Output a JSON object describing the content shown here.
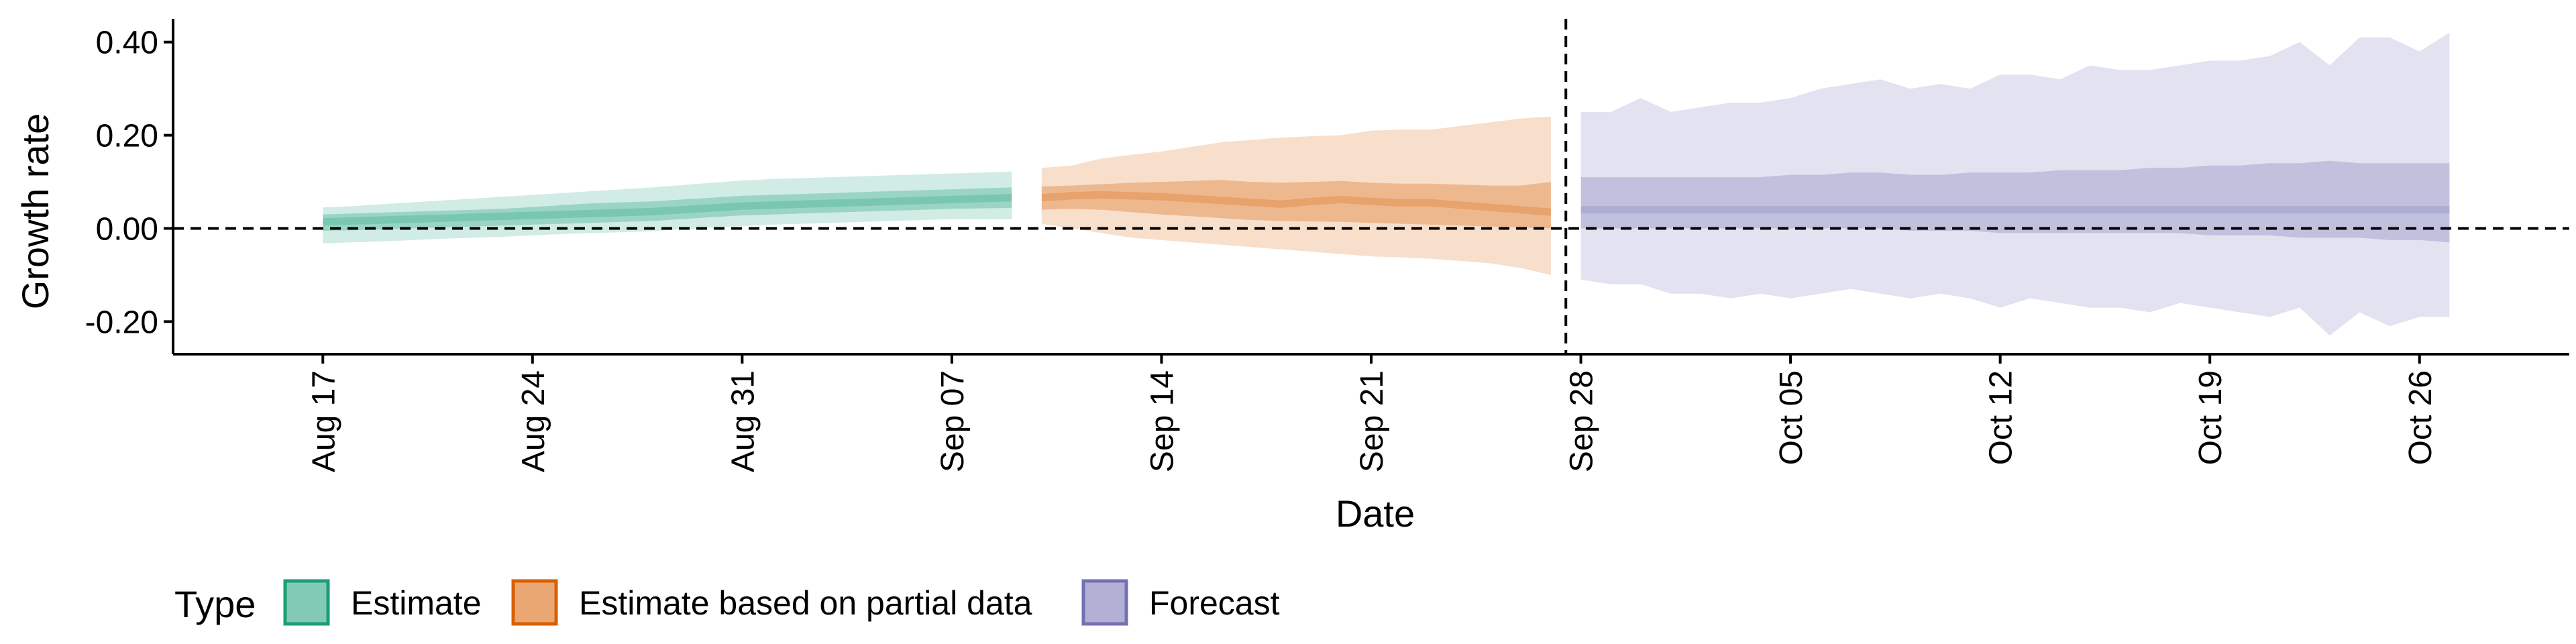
{
  "chart_data": {
    "type": "area",
    "xlabel": "Date",
    "ylabel": "Growth rate",
    "ylim": [
      -0.27,
      0.45
    ],
    "y_ticks": [
      0.4,
      0.2,
      0.0,
      -0.2
    ],
    "y_tick_labels": [
      "0.40",
      "0.20",
      "0.00",
      "-0.20"
    ],
    "x_start_date": "2020-08-17",
    "x_end_date": "2020-10-26",
    "xlim": [
      "2020-08-12",
      "2020-10-31"
    ],
    "x_ticks": [
      "2020-08-17",
      "2020-08-24",
      "2020-08-31",
      "2020-09-07",
      "2020-09-14",
      "2020-09-21",
      "2020-09-28",
      "2020-10-05",
      "2020-10-12",
      "2020-10-19",
      "2020-10-26"
    ],
    "x_tick_labels": [
      "Aug 17",
      "Aug 24",
      "Aug 31",
      "Sep 07",
      "Sep 14",
      "Sep 21",
      "Sep 28",
      "Oct 05",
      "Oct 12",
      "Oct 19",
      "Oct 26"
    ],
    "reference_lines": {
      "horizontal_y": 0.0,
      "vertical_date": "2020-09-27"
    },
    "legend": {
      "title": "Type",
      "position": "bottom",
      "entries": [
        "Estimate",
        "Estimate based on partial data",
        "Forecast"
      ]
    },
    "colors": {
      "Estimate": "#1b9e77",
      "Estimate based on partial data": "#d95f02",
      "Forecast": "#7570b3"
    },
    "series": [
      {
        "name": "Estimate",
        "start_date": "2020-08-17",
        "dates": [
          "2020-08-17",
          "2020-08-18",
          "2020-08-19",
          "2020-08-20",
          "2020-08-21",
          "2020-08-22",
          "2020-08-23",
          "2020-08-24",
          "2020-08-25",
          "2020-08-26",
          "2020-08-27",
          "2020-08-28",
          "2020-08-29",
          "2020-08-30",
          "2020-08-31",
          "2020-09-01",
          "2020-09-02",
          "2020-09-03",
          "2020-09-04",
          "2020-09-05",
          "2020-09-06",
          "2020-09-07",
          "2020-09-08",
          "2020-09-09"
        ],
        "median": [
          0.014,
          0.016,
          0.018,
          0.02,
          0.022,
          0.024,
          0.026,
          0.028,
          0.03,
          0.032,
          0.034,
          0.036,
          0.04,
          0.044,
          0.048,
          0.05,
          0.052,
          0.054,
          0.056,
          0.058,
          0.06,
          0.062,
          0.064,
          0.066
        ],
        "lower_90": [
          -0.032,
          -0.03,
          -0.028,
          -0.025,
          -0.022,
          -0.02,
          -0.018,
          -0.015,
          -0.012,
          -0.01,
          -0.008,
          -0.006,
          -0.002,
          0.002,
          0.005,
          0.008,
          0.01,
          0.012,
          0.014,
          0.016,
          0.018,
          0.02,
          0.02,
          0.02
        ],
        "upper_90": [
          0.045,
          0.048,
          0.052,
          0.056,
          0.06,
          0.064,
          0.068,
          0.072,
          0.076,
          0.08,
          0.084,
          0.088,
          0.093,
          0.098,
          0.103,
          0.106,
          0.108,
          0.11,
          0.112,
          0.114,
          0.116,
          0.118,
          0.12,
          0.122
        ],
        "lower_50": [
          -0.005,
          -0.004,
          -0.002,
          0.0,
          0.002,
          0.004,
          0.006,
          0.008,
          0.01,
          0.012,
          0.014,
          0.016,
          0.02,
          0.024,
          0.028,
          0.03,
          0.032,
          0.034,
          0.036,
          0.038,
          0.04,
          0.042,
          0.043,
          0.044
        ],
        "upper_50": [
          0.03,
          0.032,
          0.034,
          0.036,
          0.038,
          0.04,
          0.042,
          0.046,
          0.05,
          0.054,
          0.056,
          0.058,
          0.062,
          0.066,
          0.07,
          0.072,
          0.074,
          0.076,
          0.078,
          0.08,
          0.082,
          0.084,
          0.086,
          0.088
        ]
      },
      {
        "name": "Estimate based on partial data",
        "start_date": "2020-09-10",
        "dates": [
          "2020-09-10",
          "2020-09-11",
          "2020-09-12",
          "2020-09-13",
          "2020-09-14",
          "2020-09-15",
          "2020-09-16",
          "2020-09-17",
          "2020-09-18",
          "2020-09-19",
          "2020-09-20",
          "2020-09-21",
          "2020-09-22",
          "2020-09-23",
          "2020-09-24",
          "2020-09-25",
          "2020-09-26",
          "2020-09-27"
        ],
        "median": [
          0.066,
          0.07,
          0.072,
          0.07,
          0.068,
          0.064,
          0.06,
          0.056,
          0.052,
          0.058,
          0.062,
          0.058,
          0.055,
          0.055,
          0.05,
          0.045,
          0.04,
          0.035
        ],
        "lower_90": [
          0.01,
          0.0,
          -0.01,
          -0.02,
          -0.025,
          -0.03,
          -0.035,
          -0.04,
          -0.045,
          -0.05,
          -0.055,
          -0.06,
          -0.062,
          -0.065,
          -0.07,
          -0.075,
          -0.085,
          -0.1
        ],
        "upper_90": [
          0.13,
          0.135,
          0.15,
          0.158,
          0.165,
          0.175,
          0.185,
          0.19,
          0.195,
          0.198,
          0.2,
          0.21,
          0.212,
          0.212,
          0.22,
          0.228,
          0.236,
          0.24
        ],
        "lower_50": [
          0.04,
          0.042,
          0.04,
          0.035,
          0.03,
          0.026,
          0.022,
          0.018,
          0.016,
          0.015,
          0.014,
          0.012,
          0.01,
          0.008,
          0.006,
          0.004,
          0.002,
          0.0
        ],
        "upper_50": [
          0.09,
          0.092,
          0.095,
          0.098,
          0.1,
          0.102,
          0.104,
          0.1,
          0.098,
          0.1,
          0.102,
          0.098,
          0.096,
          0.096,
          0.094,
          0.092,
          0.092,
          0.1
        ]
      },
      {
        "name": "Forecast",
        "start_date": "2020-09-28",
        "dates": [
          "2020-09-28",
          "2020-09-29",
          "2020-09-30",
          "2020-10-01",
          "2020-10-02",
          "2020-10-03",
          "2020-10-04",
          "2020-10-05",
          "2020-10-06",
          "2020-10-07",
          "2020-10-08",
          "2020-10-09",
          "2020-10-10",
          "2020-10-11",
          "2020-10-12",
          "2020-10-13",
          "2020-10-14",
          "2020-10-15",
          "2020-10-16",
          "2020-10-17",
          "2020-10-18",
          "2020-10-19",
          "2020-10-20",
          "2020-10-21",
          "2020-10-22",
          "2020-10-23",
          "2020-10-24",
          "2020-10-25",
          "2020-10-26",
          "2020-10-27"
        ],
        "median": [
          0.04,
          0.04,
          0.04,
          0.04,
          0.04,
          0.04,
          0.04,
          0.04,
          0.04,
          0.04,
          0.04,
          0.04,
          0.04,
          0.04,
          0.04,
          0.04,
          0.04,
          0.04,
          0.04,
          0.04,
          0.04,
          0.04,
          0.04,
          0.04,
          0.04,
          0.04,
          0.04,
          0.04,
          0.04,
          0.04
        ],
        "lower_90": [
          -0.11,
          -0.12,
          -0.12,
          -0.14,
          -0.14,
          -0.15,
          -0.14,
          -0.15,
          -0.14,
          -0.13,
          -0.14,
          -0.15,
          -0.14,
          -0.15,
          -0.17,
          -0.15,
          -0.16,
          -0.17,
          -0.17,
          -0.18,
          -0.16,
          -0.17,
          -0.18,
          -0.19,
          -0.17,
          -0.23,
          -0.18,
          -0.21,
          -0.19,
          -0.19
        ],
        "upper_90": [
          0.25,
          0.25,
          0.28,
          0.25,
          0.26,
          0.27,
          0.27,
          0.28,
          0.3,
          0.31,
          0.32,
          0.3,
          0.31,
          0.3,
          0.33,
          0.33,
          0.32,
          0.35,
          0.34,
          0.34,
          0.35,
          0.36,
          0.36,
          0.37,
          0.4,
          0.35,
          0.41,
          0.41,
          0.38,
          0.42
        ],
        "lower_50": [
          0.0,
          0.0,
          0.0,
          0.0,
          0.0,
          0.0,
          0.0,
          0.0,
          0.0,
          0.0,
          0.0,
          -0.005,
          -0.005,
          -0.005,
          -0.01,
          -0.01,
          -0.01,
          -0.01,
          -0.01,
          -0.01,
          -0.01,
          -0.015,
          -0.015,
          -0.015,
          -0.02,
          -0.02,
          -0.02,
          -0.025,
          -0.025,
          -0.03
        ],
        "upper_50": [
          0.11,
          0.11,
          0.11,
          0.11,
          0.11,
          0.11,
          0.11,
          0.115,
          0.115,
          0.12,
          0.12,
          0.115,
          0.115,
          0.12,
          0.12,
          0.12,
          0.125,
          0.125,
          0.125,
          0.13,
          0.13,
          0.135,
          0.135,
          0.14,
          0.14,
          0.145,
          0.14,
          0.14,
          0.14,
          0.14
        ]
      }
    ]
  }
}
